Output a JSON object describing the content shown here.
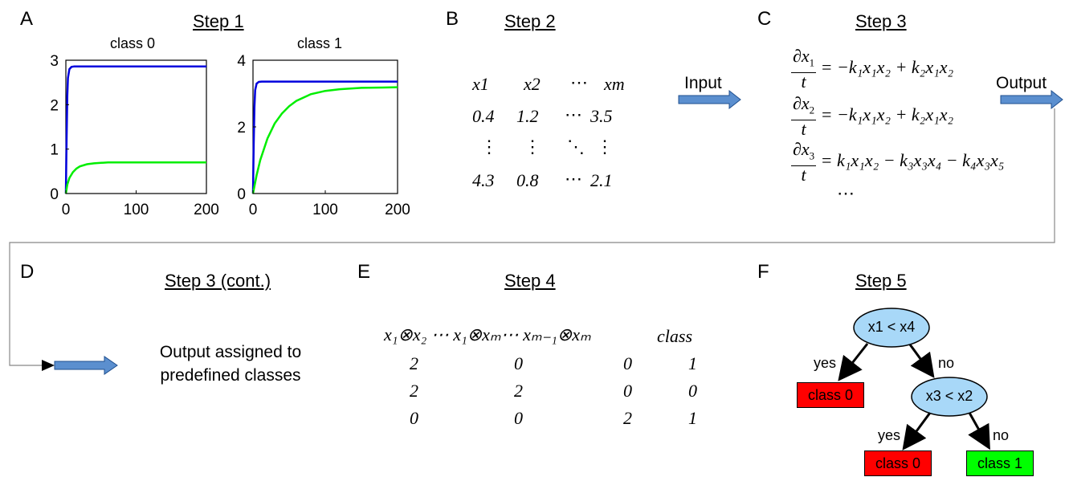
{
  "panels": {
    "A": {
      "letter": "A",
      "title": "Step 1"
    },
    "B": {
      "letter": "B",
      "title": "Step 2"
    },
    "C": {
      "letter": "C",
      "title": "Step 3"
    },
    "D": {
      "letter": "D",
      "title": "Step 3 (cont.)"
    },
    "E": {
      "letter": "E",
      "title": "Step 4"
    },
    "F": {
      "letter": "F",
      "title": "Step 5"
    }
  },
  "chart_data": [
    {
      "type": "line",
      "title": "class 0",
      "xlim": [
        0,
        200
      ],
      "ylim": [
        0,
        3
      ],
      "x_ticks": [
        "0",
        "100",
        "200"
      ],
      "y_ticks": [
        "0",
        "1",
        "2",
        "3"
      ],
      "series": [
        {
          "color": "#0000dd",
          "x": [
            0,
            1,
            2,
            3,
            5,
            8,
            12,
            20,
            50,
            100,
            150,
            200
          ],
          "y": [
            0,
            1.2,
            2.2,
            2.6,
            2.8,
            2.85,
            2.86,
            2.86,
            2.86,
            2.86,
            2.86,
            2.86
          ]
        },
        {
          "color": "#00ee00",
          "x": [
            0,
            2,
            5,
            10,
            15,
            20,
            30,
            40,
            50,
            60,
            80,
            100,
            150,
            200
          ],
          "y": [
            0,
            0.2,
            0.35,
            0.48,
            0.56,
            0.61,
            0.66,
            0.68,
            0.69,
            0.7,
            0.7,
            0.7,
            0.7,
            0.7
          ]
        }
      ]
    },
    {
      "type": "line",
      "title": "class 1",
      "xlim": [
        0,
        200
      ],
      "ylim": [
        0,
        4
      ],
      "x_ticks": [
        "0",
        "100",
        "200"
      ],
      "y_ticks": [
        "0",
        "2",
        "4"
      ],
      "series": [
        {
          "color": "#0000dd",
          "x": [
            0,
            1,
            2,
            3,
            5,
            8,
            12,
            20,
            50,
            100,
            150,
            200
          ],
          "y": [
            0,
            1.5,
            2.6,
            3.1,
            3.3,
            3.35,
            3.36,
            3.36,
            3.36,
            3.36,
            3.36,
            3.36
          ]
        },
        {
          "color": "#00ee00",
          "x": [
            0,
            5,
            10,
            20,
            30,
            40,
            50,
            60,
            80,
            100,
            120,
            150,
            180,
            200
          ],
          "y": [
            0,
            0.55,
            1.0,
            1.65,
            2.1,
            2.4,
            2.62,
            2.78,
            2.98,
            3.08,
            3.13,
            3.17,
            3.18,
            3.19
          ]
        }
      ]
    }
  ],
  "matrix": {
    "headers": [
      "x1",
      "x2",
      "⋯",
      "xm"
    ],
    "rows": [
      [
        "0.4",
        "1.2",
        "⋯",
        "3.5"
      ],
      [
        "⋮",
        "⋮",
        "⋱",
        "⋮"
      ],
      [
        "4.3",
        "0.8",
        "⋯",
        "2.1"
      ]
    ]
  },
  "arrows": {
    "input_label": "Input",
    "output_label": "Output"
  },
  "equations": {
    "eq1": {
      "num_var": "x",
      "num_sub": "1",
      "rhs": "= −k₁x₁x₂ + k₂x₁x₂"
    },
    "eq2": {
      "num_var": "x",
      "num_sub": "2",
      "rhs": "= −k₁x₁x₂ + k₂x₁x₂"
    },
    "eq3": {
      "num_var": "x",
      "num_sub": "3",
      "rhs": "= k₁x₁x₂ − k₃x₃x₄ − k₄x₃x₅"
    },
    "den": "t",
    "partial": "∂",
    "ellipsis": "⋯"
  },
  "step3_cont": {
    "text_line1": "Output assigned to",
    "text_line2": "predefined classes"
  },
  "features": {
    "header": "x₁⊗x₂  ⋯  x₁⊗xₘ⋯  xₘ₋₁⊗xₘ",
    "class_label": "class",
    "rows": [
      [
        "2",
        "0",
        "0",
        "1"
      ],
      [
        "2",
        "2",
        "0",
        "0"
      ],
      [
        "0",
        "0",
        "2",
        "1"
      ]
    ]
  },
  "tree": {
    "root": "x1 < x4",
    "node2": "x3 < x2",
    "yes1": "yes",
    "no1": "no",
    "yes2": "yes",
    "no2": "no",
    "leaf1": "class 0",
    "leaf2": "class 0",
    "leaf3": "class 1",
    "colors": {
      "node": "#a8d8f8",
      "class0": "#ff0000",
      "class1": "#00ff00",
      "arrow_fill": "#5b8fcf"
    }
  }
}
